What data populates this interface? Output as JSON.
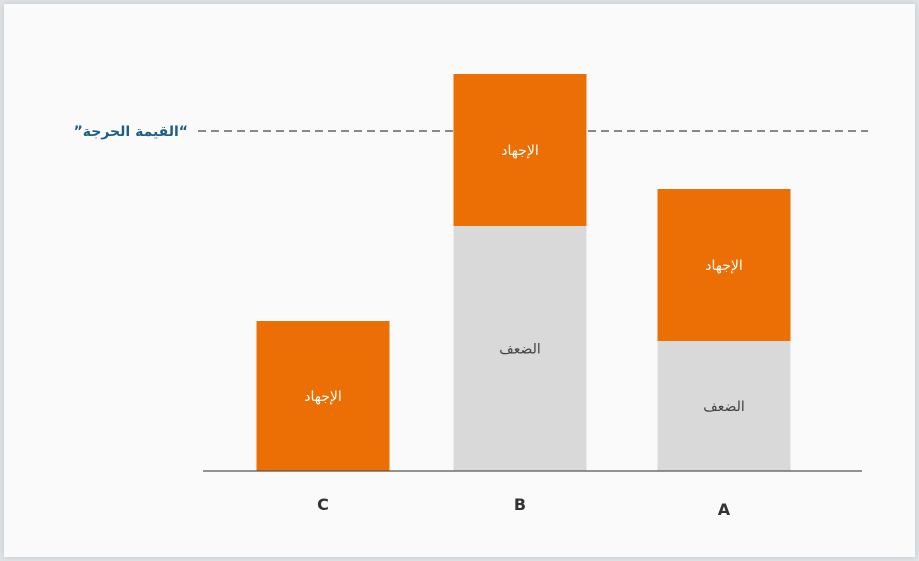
{
  "chart_data": {
    "type": "bar",
    "stacked": true,
    "categories": [
      "C",
      "B",
      "A"
    ],
    "series": [
      {
        "name": "الضعف",
        "values": [
          0,
          245,
          130
        ],
        "labels": [
          "",
          "الضعف",
          "الضعف"
        ],
        "color": "#d9d9d9"
      },
      {
        "name": "الإجهاد",
        "values": [
          150,
          152,
          152
        ],
        "labels": [
          "الإجهاد",
          "الإجهاد",
          "الإجهاد"
        ],
        "color": "#ec6f06"
      }
    ],
    "ylim": [
      0,
      400
    ],
    "threshold": {
      "label": "”القيمة الحرجة“",
      "value": 340,
      "color": "#1f5f86"
    },
    "grid": false,
    "legend": "none"
  }
}
